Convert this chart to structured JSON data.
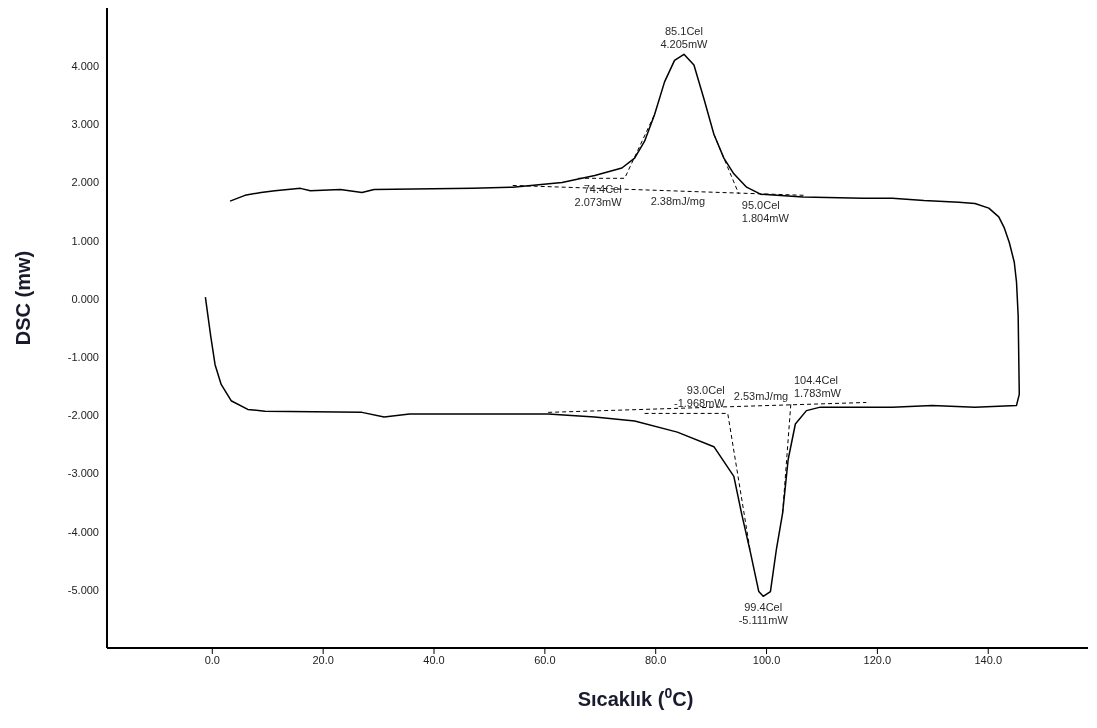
{
  "chart_data": {
    "type": "line",
    "xlabel": "Sıcaklık ($^{0}$C)",
    "ylabel": "DSC (mw)",
    "xlim": [
      -19,
      158
    ],
    "ylim": [
      -6,
      5
    ],
    "xticks": [
      {
        "value": 0,
        "label": "0.0"
      },
      {
        "value": 20,
        "label": "20.0"
      },
      {
        "value": 40,
        "label": "40.0"
      },
      {
        "value": 60,
        "label": "60.0"
      },
      {
        "value": 80,
        "label": "80.0"
      },
      {
        "value": 100,
        "label": "100.0"
      },
      {
        "value": 120,
        "label": "120.0"
      },
      {
        "value": 140,
        "label": "140.0"
      }
    ],
    "yticks": [
      {
        "value": 4,
        "label": "4.000"
      },
      {
        "value": 3,
        "label": "3.000"
      },
      {
        "value": 2,
        "label": "2.000"
      },
      {
        "value": 1,
        "label": "1.000"
      },
      {
        "value": 0,
        "label": "0.000"
      },
      {
        "value": -1,
        "label": "-1.000"
      },
      {
        "value": -2,
        "label": "-2.000"
      },
      {
        "value": -3,
        "label": "-3.000"
      },
      {
        "value": -4,
        "label": "-4.000"
      },
      {
        "value": -5,
        "label": "-5.000"
      }
    ],
    "grid": false,
    "marker": "none",
    "series": [
      {
        "color": "#000000",
        "line_style": "solid",
        "x": [
          -1.25,
          -0.3,
          0.5,
          1.6,
          3.4,
          6.4,
          9.5,
          27,
          31,
          35.6,
          51.2,
          54.7,
          60.6,
          69,
          76.2,
          83.9,
          90.5,
          94.1,
          95.5,
          97.1,
          98.6,
          99.4,
          100.7,
          101.8,
          102.9,
          103.9,
          105.2,
          107.2,
          109.7,
          122.7,
          129.9,
          137.6,
          145.1,
          145.6,
          145.4,
          145.1,
          144.7,
          143.8,
          142.9,
          141.9,
          140.1,
          137.6,
          134.7,
          128.4,
          122.7,
          117.4,
          106.6,
          98.9,
          96.4,
          94.1,
          92.3,
          90.5,
          88.7,
          86.9,
          85.1,
          83.4,
          81.6,
          79.8,
          78,
          76.2,
          73.9,
          69,
          63.1,
          54.2,
          47,
          29.2,
          27,
          23.1,
          17.7,
          15.9,
          11.3,
          8.8,
          5.9,
          3.2
        ],
        "values": [
          0.03,
          -0.63,
          -1.13,
          -1.47,
          -1.75,
          -1.9,
          -1.93,
          -1.95,
          -2.03,
          -1.98,
          -1.98,
          -1.98,
          -1.98,
          -2.03,
          -2.1,
          -2.29,
          -2.54,
          -3.05,
          -3.69,
          -4.36,
          -5.03,
          -5.111,
          -5.03,
          -4.29,
          -3.68,
          -2.76,
          -2.15,
          -1.92,
          -1.86,
          -1.86,
          -1.83,
          -1.86,
          -1.83,
          -1.64,
          -0.29,
          0.29,
          0.63,
          0.97,
          1.22,
          1.41,
          1.56,
          1.64,
          1.66,
          1.69,
          1.73,
          1.73,
          1.75,
          1.8,
          1.92,
          2.15,
          2.42,
          2.83,
          3.44,
          4.02,
          4.205,
          4.1,
          3.73,
          3.17,
          2.71,
          2.42,
          2.25,
          2.12,
          2.0,
          1.92,
          1.9,
          1.88,
          1.83,
          1.88,
          1.86,
          1.9,
          1.86,
          1.83,
          1.78,
          1.68
        ]
      },
      {
        "color": "#000000",
        "line_style": "dashed",
        "x": [
          54.2,
          107
        ],
        "values": [
          1.95,
          1.78
        ]
      },
      {
        "color": "#000000",
        "line_style": "dashed",
        "x": [
          60.6,
          118
        ],
        "values": [
          -1.95,
          -1.78
        ]
      },
      {
        "color": "#000000",
        "line_style": "dashed",
        "x": [
          66,
          74.4,
          79.8
        ],
        "values": [
          2.073,
          2.073,
          3.17
        ]
      },
      {
        "color": "#000000",
        "line_style": "dashed",
        "x": [
          90.5,
          95.0
        ],
        "values": [
          2.83,
          1.804
        ]
      },
      {
        "color": "#000000",
        "line_style": "dashed",
        "x": [
          78,
          93.0,
          97.1
        ],
        "values": [
          -1.968,
          -1.968,
          -4.36
        ]
      },
      {
        "color": "#000000",
        "line_style": "dashed",
        "x": [
          102.9,
          104.4
        ],
        "values": [
          -3.68,
          -1.783
        ]
      }
    ],
    "annotations": [
      {
        "text": "85.1Cel\n4.205mW",
        "x": 85.1,
        "y": 4.205
      },
      {
        "text": "74.4Cel\n2.073mW",
        "x": 74.4,
        "y": 2.073
      },
      {
        "text": "2.38mJ/mg",
        "x": 84,
        "y": 1.88
      },
      {
        "text": "95.0Cel\n1.804mW",
        "x": 95.0,
        "y": 1.804
      },
      {
        "text": "93.0Cel\n-1.968mW",
        "x": 93.0,
        "y": -1.968
      },
      {
        "text": "2.53mJ/mg",
        "x": 99,
        "y": -1.84
      },
      {
        "text": "104.4Cel\n1.783mW",
        "x": 104.4,
        "y": -1.783
      },
      {
        "text": "99.4Cel\n-5.111mW",
        "x": 99.4,
        "y": -5.111
      }
    ]
  }
}
